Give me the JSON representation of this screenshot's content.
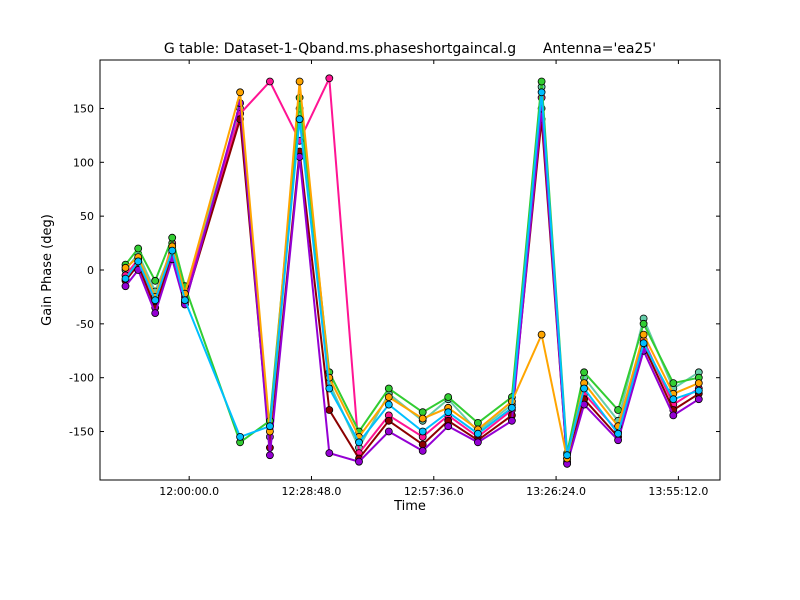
{
  "chart_data": {
    "type": "scatter",
    "title": "G table: Dataset-1-Qband.ms.phaseshortgaincal.g      Antenna='ea25'",
    "xlabel": "Time",
    "ylabel": "Gain Phase (deg)",
    "xlim": [
      "11:39:00",
      "14:05:00"
    ],
    "ylim": [
      -195,
      195
    ],
    "x_ticks": [
      "12:00:00.0",
      "12:28:48.0",
      "12:57:36.0",
      "13:26:24.0",
      "13:55:12.0"
    ],
    "y_ticks": [
      150,
      100,
      50,
      0,
      -50,
      -100,
      -150
    ],
    "grid": false,
    "x_unit": "time of day (HH:MM:SS)",
    "series": [
      {
        "color": "#66cdaa",
        "x": [
          "11:45:00",
          "11:48:00",
          "11:52:00",
          "11:56:00",
          "11:59:00",
          "12:12:00",
          "12:19:00",
          "12:26:00",
          "12:33:00",
          "12:40:00",
          "12:47:00",
          "12:55:00",
          "13:01:00",
          "13:08:00",
          "13:16:00",
          "13:23:00",
          "13:29:00",
          "13:33:00",
          "13:41:00",
          "13:47:00",
          "13:54:00",
          "14:00:00"
        ],
        "y": [
          0,
          15,
          -20,
          20,
          -20,
          150,
          -155,
          150,
          -105,
          -165,
          -115,
          -140,
          -120,
          -150,
          -125,
          170,
          -180,
          -100,
          -140,
          -45,
          -110,
          -95
        ]
      },
      {
        "color": "#ff1493",
        "x": [
          "11:45:00",
          "11:48:00",
          "11:52:00",
          "11:56:00",
          "11:59:00",
          "12:12:00",
          "12:19:00",
          "12:26:00",
          "12:33:00",
          "12:40:00",
          "12:47:00",
          "12:55:00",
          "13:01:00",
          "13:08:00",
          "13:16:00",
          "13:23:00",
          "13:29:00",
          "13:33:00",
          "13:41:00",
          "13:47:00",
          "13:54:00",
          "14:00:00"
        ],
        "y": [
          -5,
          10,
          -30,
          25,
          -25,
          145,
          175,
          120,
          178,
          -170,
          -135,
          -155,
          -135,
          -155,
          -130,
          160,
          -175,
          -115,
          -150,
          -65,
          -125,
          -110
        ]
      },
      {
        "color": "#8b0000",
        "x": [
          "11:45:00",
          "11:48:00",
          "11:52:00",
          "11:56:00",
          "11:59:00",
          "12:12:00",
          "12:19:00",
          "12:26:00",
          "12:33:00",
          "12:40:00",
          "12:47:00",
          "12:55:00",
          "13:01:00",
          "13:08:00",
          "13:16:00",
          "13:23:00",
          "13:29:00",
          "13:33:00",
          "13:41:00",
          "13:47:00",
          "13:54:00",
          "14:00:00"
        ],
        "y": [
          -10,
          5,
          -35,
          15,
          -30,
          140,
          -165,
          110,
          -130,
          -175,
          -140,
          -162,
          -140,
          -158,
          -135,
          140,
          -178,
          -120,
          -155,
          -70,
          -130,
          -115
        ]
      },
      {
        "color": "#9400d3",
        "x": [
          "11:45:00",
          "11:48:00",
          "11:52:00",
          "11:56:00",
          "11:59:00",
          "12:12:00",
          "12:19:00",
          "12:26:00",
          "12:33:00",
          "12:40:00",
          "12:47:00",
          "12:55:00",
          "13:01:00",
          "13:08:00",
          "13:16:00",
          "13:23:00",
          "13:29:00",
          "13:33:00",
          "13:41:00",
          "13:47:00",
          "13:54:00",
          "14:00:00"
        ],
        "y": [
          -15,
          0,
          -40,
          10,
          -32,
          155,
          -172,
          105,
          -170,
          -178,
          -150,
          -168,
          -145,
          -160,
          -140,
          150,
          -180,
          -125,
          -158,
          -75,
          -135,
          -120
        ]
      },
      {
        "color": "#32cd32",
        "x": [
          "11:45:00",
          "11:48:00",
          "11:52:00",
          "11:56:00",
          "11:59:00",
          "12:12:00",
          "12:19:00",
          "12:26:00",
          "12:33:00",
          "12:40:00",
          "12:47:00",
          "12:55:00",
          "13:01:00",
          "13:08:00",
          "13:16:00",
          "13:23:00",
          "13:29:00",
          "13:33:00",
          "13:41:00",
          "13:47:00",
          "13:54:00",
          "14:00:00"
        ],
        "y": [
          5,
          20,
          -10,
          30,
          -15,
          -160,
          -140,
          160,
          -95,
          -150,
          -110,
          -132,
          -118,
          -142,
          -118,
          175,
          -170,
          -95,
          -130,
          -50,
          -105,
          -100
        ]
      },
      {
        "color": "#ffa500",
        "x": [
          "11:45:00",
          "11:48:00",
          "11:52:00",
          "11:56:00",
          "11:59:00",
          "12:12:00",
          "12:19:00",
          "12:26:00",
          "12:33:00",
          "12:40:00",
          "12:47:00",
          "12:55:00",
          "13:01:00",
          "13:08:00",
          "13:16:00",
          "13:23:00",
          "13:29:00",
          "13:33:00",
          "13:41:00",
          "13:47:00",
          "13:54:00",
          "14:00:00"
        ],
        "y": [
          2,
          12,
          -25,
          22,
          -22,
          165,
          -150,
          175,
          -100,
          -155,
          -118,
          -138,
          -128,
          -148,
          -122,
          -60,
          -175,
          -105,
          -145,
          -60,
          -115,
          -105
        ]
      },
      {
        "color": "#00bfff",
        "x": [
          "11:45:00",
          "11:48:00",
          "11:52:00",
          "11:56:00",
          "11:59:00",
          "12:12:00",
          "12:19:00",
          "12:26:00",
          "12:33:00",
          "12:40:00",
          "12:47:00",
          "12:55:00",
          "13:01:00",
          "13:08:00",
          "13:16:00",
          "13:23:00",
          "13:29:00",
          "13:33:00",
          "13:41:00",
          "13:47:00",
          "13:54:00",
          "14:00:00"
        ],
        "y": [
          -8,
          8,
          -28,
          18,
          -28,
          -155,
          -145,
          140,
          -110,
          -160,
          -125,
          -150,
          -132,
          -152,
          -128,
          165,
          -172,
          -110,
          -152,
          -68,
          -120,
          -112
        ]
      }
    ]
  }
}
